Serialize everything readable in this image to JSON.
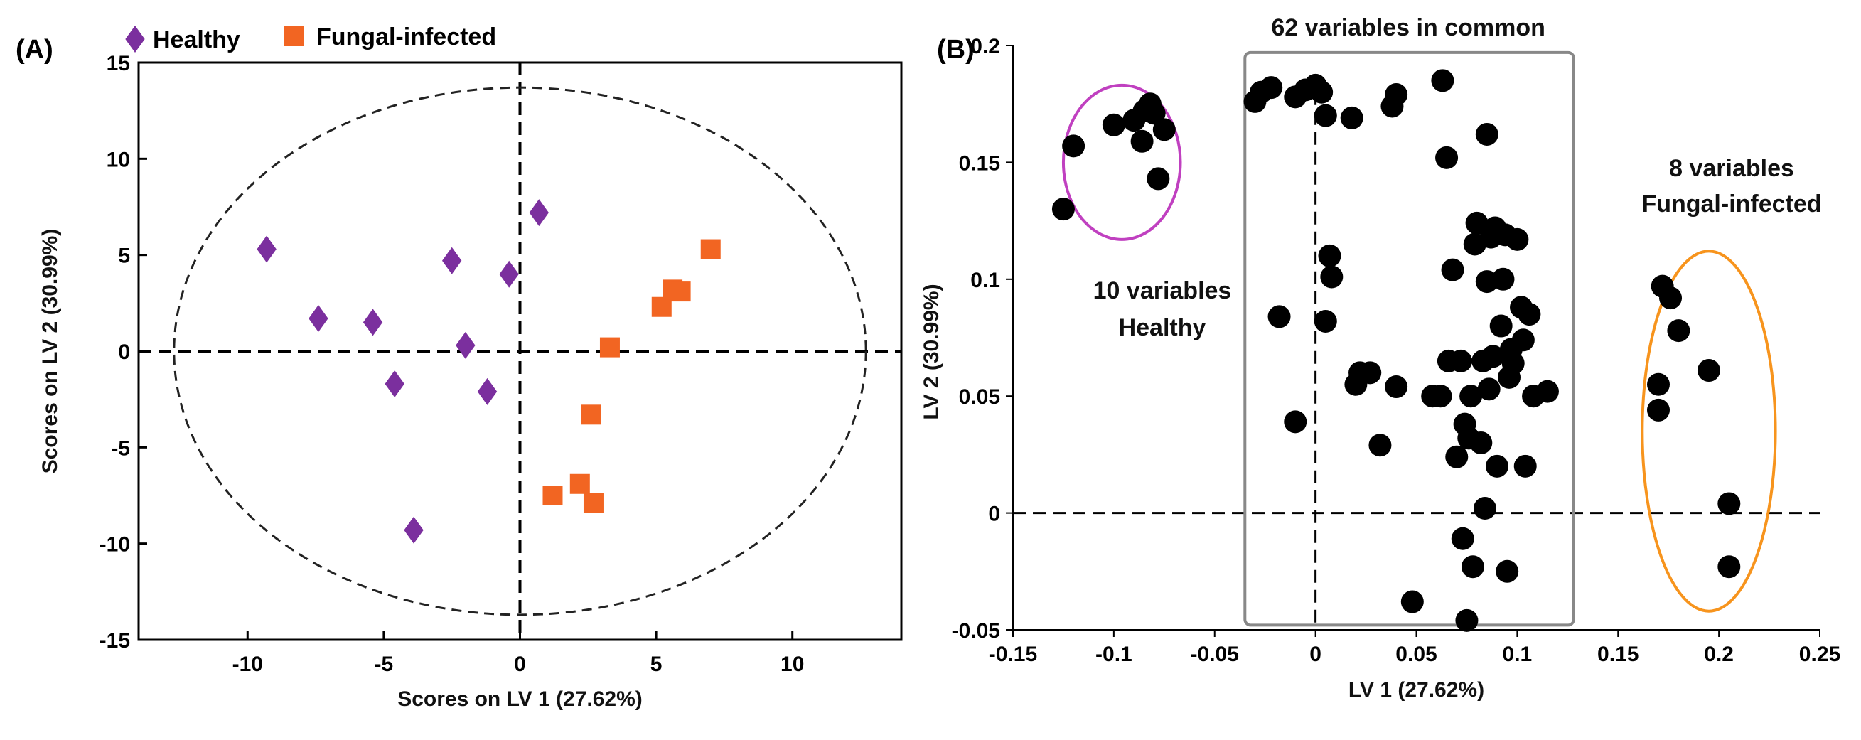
{
  "chart_data": [
    {
      "panel_label": "(A)",
      "type": "scatter",
      "xlabel": "Scores on LV 1 (27.62%)",
      "ylabel": "Scores on LV 2 (30.99%)",
      "xlim": [
        -14,
        14
      ],
      "ylim": [
        -15,
        15
      ],
      "x_ticks": [
        -10,
        -5,
        0,
        5,
        10
      ],
      "y_ticks": [
        -15,
        -10,
        -5,
        0,
        5,
        10,
        15
      ],
      "x_tick_labels": [
        "-10",
        "-5",
        "0",
        "5",
        "10"
      ],
      "y_tick_labels": [
        "-15",
        "-10",
        "-5",
        "0",
        "5",
        "10",
        "15"
      ],
      "grid": false,
      "legend_position": "top, outside",
      "confidence_ellipse": {
        "center": [
          0,
          0
        ],
        "radius_x": 12.7,
        "radius_y": 13.7
      },
      "reference_lines": {
        "x": 0,
        "y": 0
      },
      "series": [
        {
          "name": "Healthy",
          "marker": "diamond",
          "color": "#7B2F9E",
          "points": [
            {
              "x": -9.3,
              "y": 5.3
            },
            {
              "x": -7.4,
              "y": 1.7
            },
            {
              "x": -5.4,
              "y": 1.5
            },
            {
              "x": -4.6,
              "y": -1.7
            },
            {
              "x": -3.9,
              "y": -9.3
            },
            {
              "x": -2.5,
              "y": 4.7
            },
            {
              "x": -2.0,
              "y": 0.3
            },
            {
              "x": -1.2,
              "y": -2.1
            },
            {
              "x": -0.4,
              "y": 4.0
            },
            {
              "x": 0.7,
              "y": 7.2
            }
          ]
        },
        {
          "name": "Fungal-infected",
          "marker": "square",
          "color": "#F26522",
          "points": [
            {
              "x": 1.2,
              "y": -7.5
            },
            {
              "x": 2.2,
              "y": -6.9
            },
            {
              "x": 2.6,
              "y": -3.3
            },
            {
              "x": 2.7,
              "y": -7.9
            },
            {
              "x": 3.3,
              "y": 0.2
            },
            {
              "x": 5.2,
              "y": 2.3
            },
            {
              "x": 5.6,
              "y": 3.2
            },
            {
              "x": 5.9,
              "y": 3.1
            },
            {
              "x": 7.0,
              "y": 5.3
            }
          ]
        }
      ]
    },
    {
      "panel_label": "(B)",
      "type": "scatter",
      "xlabel": "LV 1 (27.62%)",
      "ylabel": "LV 2 (30.99%)",
      "xlim": [
        -0.15,
        0.25
      ],
      "ylim": [
        -0.05,
        0.2
      ],
      "x_ticks": [
        -0.15,
        -0.1,
        -0.05,
        0,
        0.05,
        0.1,
        0.15,
        0.2,
        0.25
      ],
      "y_ticks": [
        -0.05,
        0,
        0.05,
        0.1,
        0.15,
        0.2
      ],
      "x_tick_labels": [
        "-0.15",
        "-0.1",
        "-0.05",
        "0",
        "0.05",
        "0.1",
        "0.15",
        "0.2",
        "0.25"
      ],
      "y_tick_labels": [
        "-0.05",
        "0",
        "0.05",
        "0.1",
        "0.15",
        "0.2"
      ],
      "grid": false,
      "reference_lines": {
        "x": 0,
        "y": 0
      },
      "marker_color": "#000000",
      "groups": [
        {
          "name": "Healthy",
          "annotation_line1": "10 variables",
          "annotation_line2": "Healthy",
          "outline": "ellipse",
          "outline_color": "#C040C0",
          "outline_data": {
            "cx": -0.096,
            "cy": 0.15,
            "rx": 0.029,
            "ry": 0.033
          },
          "points": [
            {
              "x": -0.125,
              "y": 0.13
            },
            {
              "x": -0.12,
              "y": 0.157
            },
            {
              "x": -0.1,
              "y": 0.166
            },
            {
              "x": -0.09,
              "y": 0.168
            },
            {
              "x": -0.086,
              "y": 0.159
            },
            {
              "x": -0.085,
              "y": 0.172
            },
            {
              "x": -0.082,
              "y": 0.175
            },
            {
              "x": -0.08,
              "y": 0.171
            },
            {
              "x": -0.078,
              "y": 0.143
            },
            {
              "x": -0.075,
              "y": 0.164
            }
          ]
        },
        {
          "name": "62 variables in common",
          "annotation_line1": "62 variables in common",
          "outline": "rect",
          "outline_color": "#888888",
          "outline_data": {
            "x0": -0.035,
            "x1": 0.128,
            "y0": -0.048,
            "y1": 0.197
          },
          "points": [
            {
              "x": -0.03,
              "y": 0.176
            },
            {
              "x": -0.027,
              "y": 0.18
            },
            {
              "x": -0.022,
              "y": 0.182
            },
            {
              "x": -0.01,
              "y": 0.178
            },
            {
              "x": -0.005,
              "y": 0.181
            },
            {
              "x": 0.0,
              "y": 0.183
            },
            {
              "x": 0.003,
              "y": 0.18
            },
            {
              "x": 0.005,
              "y": 0.17
            },
            {
              "x": 0.018,
              "y": 0.169
            },
            {
              "x": 0.038,
              "y": 0.174
            },
            {
              "x": 0.04,
              "y": 0.179
            },
            {
              "x": 0.063,
              "y": 0.185
            },
            {
              "x": 0.065,
              "y": 0.152
            },
            {
              "x": 0.085,
              "y": 0.162
            },
            {
              "x": 0.007,
              "y": 0.11
            },
            {
              "x": 0.008,
              "y": 0.101
            },
            {
              "x": -0.018,
              "y": 0.084
            },
            {
              "x": 0.005,
              "y": 0.082
            },
            {
              "x": -0.01,
              "y": 0.039
            },
            {
              "x": 0.02,
              "y": 0.055
            },
            {
              "x": 0.022,
              "y": 0.06
            },
            {
              "x": 0.027,
              "y": 0.06
            },
            {
              "x": 0.032,
              "y": 0.029
            },
            {
              "x": 0.04,
              "y": 0.054
            },
            {
              "x": 0.048,
              "y": -0.038
            },
            {
              "x": 0.058,
              "y": 0.05
            },
            {
              "x": 0.062,
              "y": 0.05
            },
            {
              "x": 0.066,
              "y": 0.065
            },
            {
              "x": 0.068,
              "y": 0.104
            },
            {
              "x": 0.07,
              "y": 0.024
            },
            {
              "x": 0.072,
              "y": 0.065
            },
            {
              "x": 0.073,
              "y": -0.011
            },
            {
              "x": 0.074,
              "y": 0.038
            },
            {
              "x": 0.075,
              "y": -0.046
            },
            {
              "x": 0.076,
              "y": 0.032
            },
            {
              "x": 0.077,
              "y": 0.05
            },
            {
              "x": 0.078,
              "y": -0.023
            },
            {
              "x": 0.079,
              "y": 0.115
            },
            {
              "x": 0.08,
              "y": 0.124
            },
            {
              "x": 0.082,
              "y": 0.03
            },
            {
              "x": 0.083,
              "y": 0.065
            },
            {
              "x": 0.084,
              "y": 0.002
            },
            {
              "x": 0.085,
              "y": 0.099
            },
            {
              "x": 0.086,
              "y": 0.053
            },
            {
              "x": 0.087,
              "y": 0.118
            },
            {
              "x": 0.088,
              "y": 0.067
            },
            {
              "x": 0.089,
              "y": 0.122
            },
            {
              "x": 0.09,
              "y": 0.02
            },
            {
              "x": 0.092,
              "y": 0.08
            },
            {
              "x": 0.093,
              "y": 0.1
            },
            {
              "x": 0.094,
              "y": 0.119
            },
            {
              "x": 0.095,
              "y": -0.025
            },
            {
              "x": 0.096,
              "y": 0.058
            },
            {
              "x": 0.097,
              "y": 0.07
            },
            {
              "x": 0.098,
              "y": 0.064
            },
            {
              "x": 0.1,
              "y": 0.117
            },
            {
              "x": 0.102,
              "y": 0.088
            },
            {
              "x": 0.103,
              "y": 0.074
            },
            {
              "x": 0.104,
              "y": 0.02
            },
            {
              "x": 0.106,
              "y": 0.085
            },
            {
              "x": 0.108,
              "y": 0.05
            },
            {
              "x": 0.115,
              "y": 0.052
            }
          ]
        },
        {
          "name": "Fungal-infected",
          "annotation_line1": "8 variables",
          "annotation_line2": "Fungal-infected",
          "outline": "ellipse",
          "outline_color": "#F7941D",
          "outline_data": {
            "cx": 0.195,
            "cy": 0.035,
            "rx": 0.033,
            "ry": 0.077
          },
          "points": [
            {
              "x": 0.17,
              "y": 0.055
            },
            {
              "x": 0.17,
              "y": 0.044
            },
            {
              "x": 0.172,
              "y": 0.097
            },
            {
              "x": 0.176,
              "y": 0.092
            },
            {
              "x": 0.18,
              "y": 0.078
            },
            {
              "x": 0.195,
              "y": 0.061
            },
            {
              "x": 0.205,
              "y": 0.004
            },
            {
              "x": 0.205,
              "y": -0.023
            }
          ]
        }
      ]
    }
  ]
}
